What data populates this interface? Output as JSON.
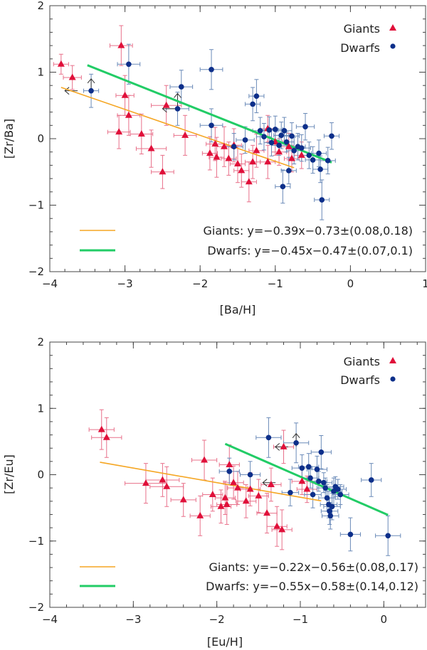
{
  "chart_data": [
    {
      "type": "scatter",
      "xlabel": "[Ba/H]",
      "ylabel": "[Zr/Ba]",
      "xlim": [
        -4,
        1
      ],
      "ylim": [
        -2,
        2
      ],
      "xticks": [
        "−4",
        "−3",
        "−2",
        "−1",
        "0",
        "1"
      ],
      "yticks": [
        "−2",
        "−1",
        "0",
        "1",
        "2"
      ],
      "legend": {
        "giants": "Giants",
        "dwarfs": "Dwarfs",
        "position": "top-right"
      },
      "fits": [
        {
          "name": "giants",
          "label": "Giants:  y=−0.39x−0.73±(0.08,0.18)",
          "color": "#f5a623",
          "x": [
            -3.85,
            -0.75
          ]
        },
        {
          "name": "dwarfs",
          "label": "Dwarfs:  y=−0.45x−0.47±(0.07,0.1)",
          "color": "#22cc66",
          "x": [
            -3.5,
            -0.25
          ]
        }
      ],
      "series": [
        {
          "name": "Giants",
          "marker": "triangle",
          "color": "#e0103a",
          "points": [
            [
              -3.85,
              1.12,
              0.1,
              0.15
            ],
            [
              -3.7,
              0.92,
              0.12,
              0.18
            ],
            [
              -3.05,
              1.4,
              0.15,
              0.3
            ],
            [
              -3.0,
              0.65,
              0.12,
              0.3
            ],
            [
              -3.08,
              0.1,
              0.15,
              0.25
            ],
            [
              -2.95,
              0.35,
              0.15,
              0.3
            ],
            [
              -2.78,
              0.07,
              0.15,
              0.3
            ],
            [
              -2.65,
              -0.15,
              0.2,
              0.28
            ],
            [
              -2.5,
              -0.5,
              0.15,
              0.25
            ],
            [
              -2.45,
              0.5,
              0.2,
              0.3
            ],
            [
              -2.2,
              0.05,
              0.15,
              0.3
            ],
            [
              -1.87,
              -0.22,
              0.1,
              0.25
            ],
            [
              -1.8,
              -0.08,
              0.12,
              0.25
            ],
            [
              -1.78,
              -0.28,
              0.1,
              0.3
            ],
            [
              -1.68,
              -0.12,
              0.1,
              0.3
            ],
            [
              -1.62,
              -0.3,
              0.1,
              0.25
            ],
            [
              -1.55,
              -0.1,
              0.1,
              0.25
            ],
            [
              -1.5,
              -0.38,
              0.1,
              0.28
            ],
            [
              -1.45,
              -0.48,
              0.1,
              0.25
            ],
            [
              -1.35,
              -0.65,
              0.1,
              0.3
            ],
            [
              -1.3,
              -0.35,
              0.1,
              0.25
            ],
            [
              -1.25,
              -0.18,
              0.1,
              0.25
            ],
            [
              -1.1,
              0.15,
              0.1,
              0.2
            ],
            [
              -1.1,
              -0.35,
              0.1,
              0.25
            ],
            [
              -1.0,
              -0.05,
              0.1,
              0.2
            ],
            [
              -0.95,
              -0.2,
              0.1,
              0.2
            ],
            [
              -0.82,
              -0.12,
              0.1,
              0.2
            ],
            [
              -0.78,
              -0.3,
              0.1,
              0.2
            ],
            [
              -0.65,
              -0.25,
              0.1,
              0.2
            ]
          ]
        },
        {
          "name": "Dwarfs",
          "marker": "circle",
          "color": "#0d2f8a",
          "points": [
            [
              -3.45,
              0.72,
              0.1,
              0.25
            ],
            [
              -2.95,
              1.12,
              0.15,
              0.3
            ],
            [
              -2.3,
              0.45,
              0.15,
              0.25
            ],
            [
              -2.25,
              0.78,
              0.15,
              0.25
            ],
            [
              -1.85,
              1.04,
              0.15,
              0.3
            ],
            [
              -1.85,
              0.2,
              0.15,
              0.25
            ],
            [
              -1.55,
              -0.12,
              0.12,
              0.2
            ],
            [
              -1.4,
              -0.02,
              0.12,
              0.2
            ],
            [
              -1.3,
              0.52,
              0.1,
              0.25
            ],
            [
              -1.25,
              0.64,
              0.1,
              0.25
            ],
            [
              -1.2,
              0.12,
              0.1,
              0.2
            ],
            [
              -1.15,
              0.03,
              0.1,
              0.2
            ],
            [
              -1.08,
              0.13,
              0.12,
              0.2
            ],
            [
              -1.05,
              -0.06,
              0.1,
              0.2
            ],
            [
              -1.0,
              0.14,
              0.1,
              0.2
            ],
            [
              -0.95,
              -0.1,
              0.1,
              0.15
            ],
            [
              -0.92,
              0.05,
              0.1,
              0.2
            ],
            [
              -0.9,
              -0.72,
              0.1,
              0.25
            ],
            [
              -0.88,
              0.12,
              0.1,
              0.2
            ],
            [
              -0.85,
              -0.05,
              0.1,
              0.15
            ],
            [
              -0.82,
              -0.48,
              0.1,
              0.2
            ],
            [
              -0.78,
              0.04,
              0.1,
              0.2
            ],
            [
              -0.75,
              -0.18,
              0.1,
              0.2
            ],
            [
              -0.7,
              -0.12,
              0.1,
              0.2
            ],
            [
              -0.65,
              -0.14,
              0.12,
              0.2
            ],
            [
              -0.6,
              0.18,
              0.12,
              0.2
            ],
            [
              -0.55,
              -0.25,
              0.1,
              0.2
            ],
            [
              -0.5,
              -0.32,
              0.1,
              0.2
            ],
            [
              -0.42,
              -0.22,
              0.1,
              0.2
            ],
            [
              -0.4,
              -0.46,
              0.1,
              0.2
            ],
            [
              -0.38,
              -0.92,
              0.1,
              0.3
            ],
            [
              -0.3,
              -0.33,
              0.1,
              0.2
            ],
            [
              -0.25,
              0.04,
              0.1,
              0.2
            ]
          ]
        }
      ],
      "limits": [
        {
          "series": "Giants",
          "dir": "left",
          "x": -3.8,
          "y": 0.72
        },
        {
          "series": "Giants",
          "dir": "up",
          "x": -3.45,
          "y": 0.9
        },
        {
          "series": "Giants",
          "dir": "left",
          "x": -2.5,
          "y": 0.45
        },
        {
          "series": "Dwarfs",
          "dir": "up",
          "x": -2.3,
          "y": 0.68
        }
      ]
    },
    {
      "type": "scatter",
      "xlabel": "[Eu/H]",
      "ylabel": "[Zr/Eu]",
      "xlim": [
        -4,
        0.5
      ],
      "ylim": [
        -2,
        2
      ],
      "xticks": [
        "−4",
        "−3",
        "−2",
        "−1",
        "0"
      ],
      "yticks": [
        "−2",
        "−1",
        "0",
        "1",
        "2"
      ],
      "legend": {
        "giants": "Giants",
        "dwarfs": "Dwarfs",
        "position": "top-right"
      },
      "fits": [
        {
          "name": "giants",
          "label": "Giants:  y=−0.22x−0.56±(0.08,0.17)",
          "color": "#f5a623",
          "x": [
            -3.4,
            -0.75
          ]
        },
        {
          "name": "dwarfs",
          "label": "Dwarfs:  y=−0.55x−0.58±(0.14,0.12)",
          "color": "#22cc66",
          "x": [
            -1.9,
            0.05
          ]
        }
      ],
      "series": [
        {
          "name": "Giants",
          "marker": "triangle",
          "color": "#e0103a",
          "points": [
            [
              -3.38,
              0.68,
              0.15,
              0.3
            ],
            [
              -3.32,
              0.56,
              0.18,
              0.3
            ],
            [
              -2.85,
              -0.13,
              0.25,
              0.3
            ],
            [
              -2.65,
              -0.08,
              0.2,
              0.25
            ],
            [
              -2.6,
              -0.18,
              0.2,
              0.3
            ],
            [
              -2.4,
              -0.38,
              0.15,
              0.25
            ],
            [
              -2.2,
              -0.62,
              0.12,
              0.3
            ],
            [
              -2.15,
              0.22,
              0.15,
              0.3
            ],
            [
              -2.05,
              -0.3,
              0.12,
              0.25
            ],
            [
              -1.95,
              -0.48,
              0.12,
              0.25
            ],
            [
              -1.9,
              -0.35,
              0.12,
              0.25
            ],
            [
              -1.88,
              -0.45,
              0.12,
              0.3
            ],
            [
              -1.85,
              0.15,
              0.12,
              0.3
            ],
            [
              -1.8,
              -0.12,
              0.12,
              0.25
            ],
            [
              -1.75,
              -0.2,
              0.12,
              0.25
            ],
            [
              -1.65,
              -0.4,
              0.12,
              0.25
            ],
            [
              -1.6,
              -0.22,
              0.12,
              0.25
            ],
            [
              -1.5,
              -0.32,
              0.12,
              0.25
            ],
            [
              -1.4,
              -0.58,
              0.12,
              0.3
            ],
            [
              -1.35,
              -0.15,
              0.12,
              0.25
            ],
            [
              -1.28,
              -0.78,
              0.12,
              0.3
            ],
            [
              -1.22,
              -0.83,
              0.12,
              0.3
            ],
            [
              -1.2,
              0.42,
              0.12,
              0.25
            ],
            [
              -0.98,
              -0.1,
              0.12,
              0.2
            ],
            [
              -0.92,
              -0.22,
              0.12,
              0.2
            ]
          ]
        },
        {
          "name": "Dwarfs",
          "marker": "circle",
          "color": "#0d2f8a",
          "points": [
            [
              -1.85,
              0.05,
              0.12,
              0.2
            ],
            [
              -1.6,
              0.0,
              0.12,
              0.2
            ],
            [
              -1.38,
              0.56,
              0.15,
              0.3
            ],
            [
              -1.12,
              -0.27,
              0.1,
              0.2
            ],
            [
              -1.05,
              0.48,
              0.15,
              0.3
            ],
            [
              -0.98,
              0.1,
              0.12,
              0.2
            ],
            [
              -0.9,
              0.12,
              0.12,
              0.2
            ],
            [
              -0.88,
              -0.05,
              0.1,
              0.15
            ],
            [
              -0.85,
              -0.3,
              0.1,
              0.2
            ],
            [
              -0.8,
              0.08,
              0.12,
              0.2
            ],
            [
              -0.78,
              -0.1,
              0.1,
              0.15
            ],
            [
              -0.75,
              0.34,
              0.12,
              0.25
            ],
            [
              -0.72,
              -0.12,
              0.1,
              0.15
            ],
            [
              -0.7,
              -0.2,
              0.1,
              0.15
            ],
            [
              -0.68,
              -0.35,
              0.1,
              0.2
            ],
            [
              -0.66,
              -0.45,
              0.1,
              0.2
            ],
            [
              -0.65,
              -0.55,
              0.1,
              0.2
            ],
            [
              -0.64,
              -0.62,
              0.1,
              0.2
            ],
            [
              -0.62,
              -0.48,
              0.1,
              0.2
            ],
            [
              -0.6,
              -0.25,
              0.1,
              0.2
            ],
            [
              -0.58,
              -0.18,
              0.1,
              0.15
            ],
            [
              -0.55,
              -0.22,
              0.1,
              0.15
            ],
            [
              -0.52,
              -0.3,
              0.1,
              0.15
            ],
            [
              -0.4,
              -0.9,
              0.12,
              0.25
            ],
            [
              -0.15,
              -0.08,
              0.12,
              0.25
            ],
            [
              0.05,
              -0.92,
              0.15,
              0.3
            ]
          ]
        }
      ],
      "limits": [
        {
          "series": "Dwarfs",
          "dir": "left",
          "x": -1.45,
          "y": -0.12
        },
        {
          "series": "Giants",
          "dir": "left",
          "x": -1.3,
          "y": 0.42
        },
        {
          "series": "Dwarfs",
          "dir": "up",
          "x": -1.05,
          "y": 0.62
        }
      ]
    }
  ]
}
